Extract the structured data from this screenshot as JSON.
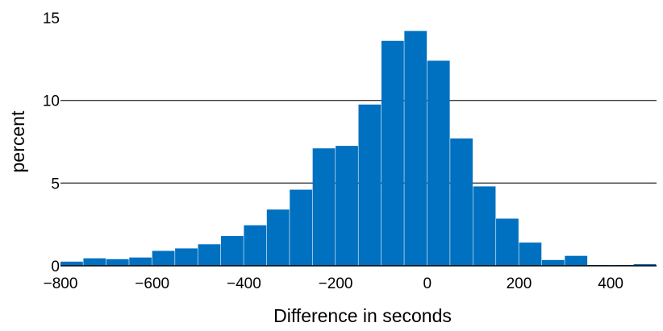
{
  "chart_data": {
    "type": "bar",
    "xlabel": "Difference in seconds",
    "ylabel": "percent",
    "xlim": [
      -800,
      500
    ],
    "ylim": [
      0,
      15
    ],
    "x_ticks": [
      -800,
      -600,
      -400,
      -200,
      0,
      200,
      400
    ],
    "y_ticks": [
      0,
      5,
      10,
      15
    ],
    "grid": "horizontal",
    "bin_width": 50,
    "bar_color": "#0070C0",
    "bins": [
      {
        "x": -800,
        "value": 0.25
      },
      {
        "x": -750,
        "value": 0.45
      },
      {
        "x": -700,
        "value": 0.4
      },
      {
        "x": -650,
        "value": 0.5
      },
      {
        "x": -600,
        "value": 0.9
      },
      {
        "x": -550,
        "value": 1.05
      },
      {
        "x": -500,
        "value": 1.3
      },
      {
        "x": -450,
        "value": 1.8
      },
      {
        "x": -400,
        "value": 2.45
      },
      {
        "x": -350,
        "value": 3.4
      },
      {
        "x": -300,
        "value": 4.6
      },
      {
        "x": -250,
        "value": 7.1
      },
      {
        "x": -200,
        "value": 7.25
      },
      {
        "x": -150,
        "value": 9.75
      },
      {
        "x": -100,
        "value": 13.6
      },
      {
        "x": -50,
        "value": 14.2
      },
      {
        "x": 0,
        "value": 12.4
      },
      {
        "x": 50,
        "value": 7.7
      },
      {
        "x": 100,
        "value": 4.8
      },
      {
        "x": 150,
        "value": 2.85
      },
      {
        "x": 200,
        "value": 1.4
      },
      {
        "x": 250,
        "value": 0.35
      },
      {
        "x": 300,
        "value": 0.6
      },
      {
        "x": 350,
        "value": 0.05
      },
      {
        "x": 400,
        "value": 0.05
      },
      {
        "x": 450,
        "value": 0.1
      }
    ]
  }
}
